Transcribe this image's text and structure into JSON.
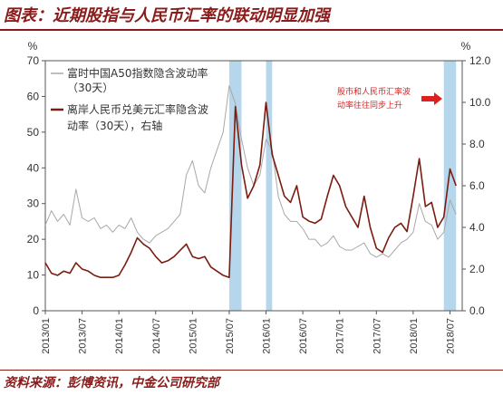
{
  "title": "图表：近期股指与人民币汇率的联动明显加强",
  "source": "资料来源：彭博资讯，中金公司研究部",
  "colors": {
    "title": "#8b1a1a",
    "cny_series": "#7a1c10",
    "a50_series": "#a8a8a8",
    "highlight": "#a9cfe8",
    "annotation": "#e02020"
  },
  "chart_data": {
    "type": "line",
    "left_axis": {
      "unit": "%",
      "ylim": [
        0,
        70
      ],
      "ticks": [
        "0",
        "10",
        "20",
        "30",
        "40",
        "50",
        "60",
        "70"
      ]
    },
    "right_axis": {
      "unit": "%",
      "ylim": [
        0,
        12
      ],
      "ticks": [
        "0.0",
        "2.0",
        "4.0",
        "6.0",
        "8.0",
        "10.0",
        "12.0"
      ]
    },
    "x_range": [
      "2013-01",
      "2018-09"
    ],
    "x_ticks": [
      "2013/01",
      "2013/07",
      "2014/01",
      "2014/07",
      "2015/01",
      "2015/07",
      "2016/01",
      "2016/07",
      "2017/01",
      "2017/07",
      "2018/01",
      "2018/07"
    ],
    "highlight_periods": [
      [
        "2015-07",
        "2015-09"
      ],
      [
        "2016-01",
        "2016-02"
      ],
      [
        "2018-06",
        "2018-08"
      ]
    ],
    "legend": [
      {
        "label": "富时中国A50指数隐含波动率",
        "label2": "（30天）",
        "series": "a50"
      },
      {
        "label": "离岸人民币兑美元汇率隐含波",
        "label2": "动率（30天），右轴",
        "series": "cny"
      }
    ],
    "annotation": {
      "line1": "股市和人民币汇率波",
      "line2": "动率往往同步上升"
    },
    "series": [
      {
        "name": "富时中国A50指数隐含波动率（30天）",
        "axis": "left",
        "points": [
          [
            "2013-01",
            24
          ],
          [
            "2013-02",
            28
          ],
          [
            "2013-03",
            25
          ],
          [
            "2013-04",
            27
          ],
          [
            "2013-05",
            24
          ],
          [
            "2013-06",
            34
          ],
          [
            "2013-07",
            26
          ],
          [
            "2013-08",
            25
          ],
          [
            "2013-09",
            26
          ],
          [
            "2013-10",
            23
          ],
          [
            "2013-11",
            24
          ],
          [
            "2013-12",
            22
          ],
          [
            "2014-01",
            24
          ],
          [
            "2014-02",
            23
          ],
          [
            "2014-03",
            26
          ],
          [
            "2014-04",
            22
          ],
          [
            "2014-05",
            20
          ],
          [
            "2014-06",
            19
          ],
          [
            "2014-07",
            21
          ],
          [
            "2014-08",
            22
          ],
          [
            "2014-09",
            23
          ],
          [
            "2014-10",
            25
          ],
          [
            "2014-11",
            27
          ],
          [
            "2014-12",
            38
          ],
          [
            "2015-01",
            42
          ],
          [
            "2015-02",
            35
          ],
          [
            "2015-03",
            33
          ],
          [
            "2015-04",
            40
          ],
          [
            "2015-05",
            45
          ],
          [
            "2015-06",
            50
          ],
          [
            "2015-07",
            63
          ],
          [
            "2015-08",
            58
          ],
          [
            "2015-09",
            48
          ],
          [
            "2015-10",
            40
          ],
          [
            "2015-11",
            35
          ],
          [
            "2015-12",
            38
          ],
          [
            "2016-01",
            48
          ],
          [
            "2016-02",
            45
          ],
          [
            "2016-03",
            32
          ],
          [
            "2016-04",
            27
          ],
          [
            "2016-05",
            25
          ],
          [
            "2016-06",
            25
          ],
          [
            "2016-07",
            23
          ],
          [
            "2016-08",
            20
          ],
          [
            "2016-09",
            20
          ],
          [
            "2016-10",
            18
          ],
          [
            "2016-11",
            19
          ],
          [
            "2016-12",
            21
          ],
          [
            "2017-01",
            18
          ],
          [
            "2017-02",
            17
          ],
          [
            "2017-03",
            17
          ],
          [
            "2017-04",
            18
          ],
          [
            "2017-05",
            19
          ],
          [
            "2017-06",
            16
          ],
          [
            "2017-07",
            15
          ],
          [
            "2017-08",
            16
          ],
          [
            "2017-09",
            15
          ],
          [
            "2017-10",
            17
          ],
          [
            "2017-11",
            19
          ],
          [
            "2017-12",
            20
          ],
          [
            "2018-01",
            22
          ],
          [
            "2018-02",
            30
          ],
          [
            "2018-03",
            25
          ],
          [
            "2018-04",
            24
          ],
          [
            "2018-05",
            20
          ],
          [
            "2018-06",
            22
          ],
          [
            "2018-07",
            31
          ],
          [
            "2018-08",
            27
          ]
        ]
      },
      {
        "name": "离岸人民币兑美元汇率隐含波动率（30天），右轴",
        "axis": "right",
        "points": [
          [
            "2013-01",
            2.3
          ],
          [
            "2013-02",
            1.8
          ],
          [
            "2013-03",
            1.7
          ],
          [
            "2013-04",
            1.9
          ],
          [
            "2013-05",
            1.8
          ],
          [
            "2013-06",
            2.3
          ],
          [
            "2013-07",
            2.0
          ],
          [
            "2013-08",
            1.9
          ],
          [
            "2013-09",
            1.7
          ],
          [
            "2013-10",
            1.6
          ],
          [
            "2013-11",
            1.6
          ],
          [
            "2013-12",
            1.6
          ],
          [
            "2014-01",
            1.7
          ],
          [
            "2014-02",
            2.2
          ],
          [
            "2014-03",
            2.8
          ],
          [
            "2014-04",
            3.5
          ],
          [
            "2014-05",
            3.2
          ],
          [
            "2014-06",
            3.0
          ],
          [
            "2014-07",
            2.6
          ],
          [
            "2014-08",
            2.3
          ],
          [
            "2014-09",
            2.4
          ],
          [
            "2014-10",
            2.6
          ],
          [
            "2014-11",
            2.9
          ],
          [
            "2014-12",
            3.2
          ],
          [
            "2015-01",
            2.6
          ],
          [
            "2015-02",
            2.5
          ],
          [
            "2015-03",
            2.6
          ],
          [
            "2015-04",
            2.1
          ],
          [
            "2015-05",
            1.9
          ],
          [
            "2015-06",
            1.7
          ],
          [
            "2015-07",
            1.6
          ],
          [
            "2015-08",
            9.8
          ],
          [
            "2015-09",
            7.0
          ],
          [
            "2015-10",
            5.4
          ],
          [
            "2015-11",
            6.0
          ],
          [
            "2015-12",
            7.0
          ],
          [
            "2016-01",
            10.0
          ],
          [
            "2016-02",
            7.5
          ],
          [
            "2016-03",
            6.5
          ],
          [
            "2016-04",
            5.5
          ],
          [
            "2016-05",
            5.2
          ],
          [
            "2016-06",
            6.0
          ],
          [
            "2016-07",
            4.5
          ],
          [
            "2016-08",
            4.3
          ],
          [
            "2016-09",
            4.2
          ],
          [
            "2016-10",
            4.4
          ],
          [
            "2016-11",
            5.5
          ],
          [
            "2016-12",
            6.5
          ],
          [
            "2017-01",
            6.0
          ],
          [
            "2017-02",
            5.0
          ],
          [
            "2017-03",
            4.5
          ],
          [
            "2017-04",
            4.0
          ],
          [
            "2017-05",
            5.5
          ],
          [
            "2017-06",
            4.0
          ],
          [
            "2017-07",
            3.0
          ],
          [
            "2017-08",
            2.8
          ],
          [
            "2017-09",
            3.5
          ],
          [
            "2017-10",
            4.0
          ],
          [
            "2017-11",
            4.2
          ],
          [
            "2017-12",
            3.8
          ],
          [
            "2018-01",
            5.5
          ],
          [
            "2018-02",
            7.3
          ],
          [
            "2018-03",
            5.0
          ],
          [
            "2018-04",
            5.2
          ],
          [
            "2018-05",
            4.0
          ],
          [
            "2018-06",
            4.5
          ],
          [
            "2018-07",
            6.8
          ],
          [
            "2018-08",
            6.0
          ]
        ]
      }
    ]
  }
}
